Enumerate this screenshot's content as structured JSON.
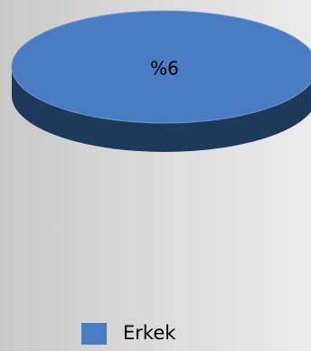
{
  "chart_data": {
    "type": "pie",
    "categories": [
      "Erkek"
    ],
    "values": [
      6
    ],
    "value_labels": [
      "%6"
    ],
    "colors": [
      "#4a7cc3"
    ],
    "side_colors": [
      "#1e3a5a"
    ],
    "legend": "bottom"
  }
}
